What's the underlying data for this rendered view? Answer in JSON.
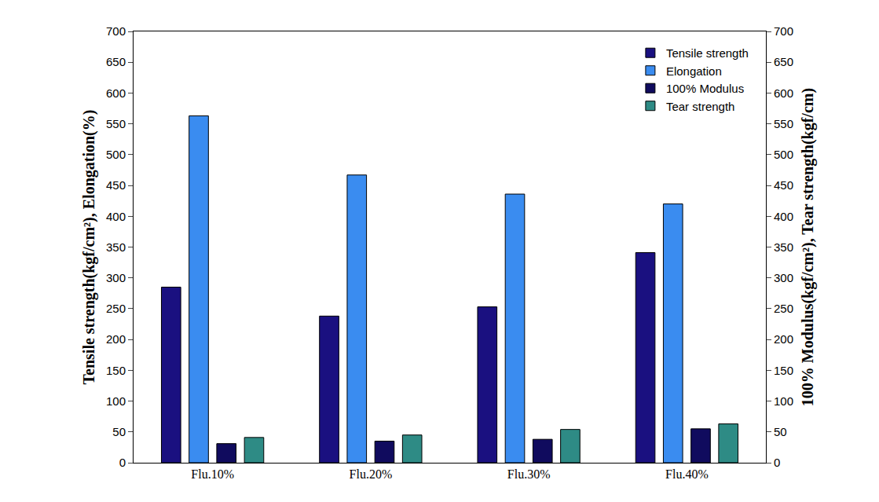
{
  "chart_data": {
    "type": "bar",
    "categories": [
      "Flu.10%",
      "Flu.20%",
      "Flu.30%",
      "Flu.40%"
    ],
    "y_label": "Tensile strength(kgf/cm²), Elongation(%)",
    "y2_label": "100% Modulus(kgf/cm²), Tear strength(kgf/cm)",
    "ylim": [
      0,
      700
    ],
    "yticks": [
      0,
      50,
      100,
      150,
      200,
      250,
      300,
      350,
      400,
      450,
      500,
      550,
      600,
      650,
      700
    ],
    "y2lim": [
      0,
      700
    ],
    "y2ticks": [
      0,
      50,
      100,
      150,
      200,
      250,
      300,
      350,
      400,
      450,
      500,
      550,
      600,
      650,
      700
    ],
    "grid": false,
    "legend": "top right",
    "series": [
      {
        "name": "Tensile strength",
        "color": "#1a1080",
        "values": [
          285,
          238,
          253,
          341
        ]
      },
      {
        "name": "Elongation",
        "color": "#3a8cf0",
        "values": [
          563,
          467,
          436,
          420
        ]
      },
      {
        "name": "100% Modulus",
        "color": "#100b5e",
        "values": [
          31,
          35,
          38,
          55
        ],
        "axis": "y2"
      },
      {
        "name": "Tear strength",
        "color": "#2e8b85",
        "values": [
          41,
          45,
          54,
          63
        ],
        "axis": "y2"
      }
    ]
  }
}
